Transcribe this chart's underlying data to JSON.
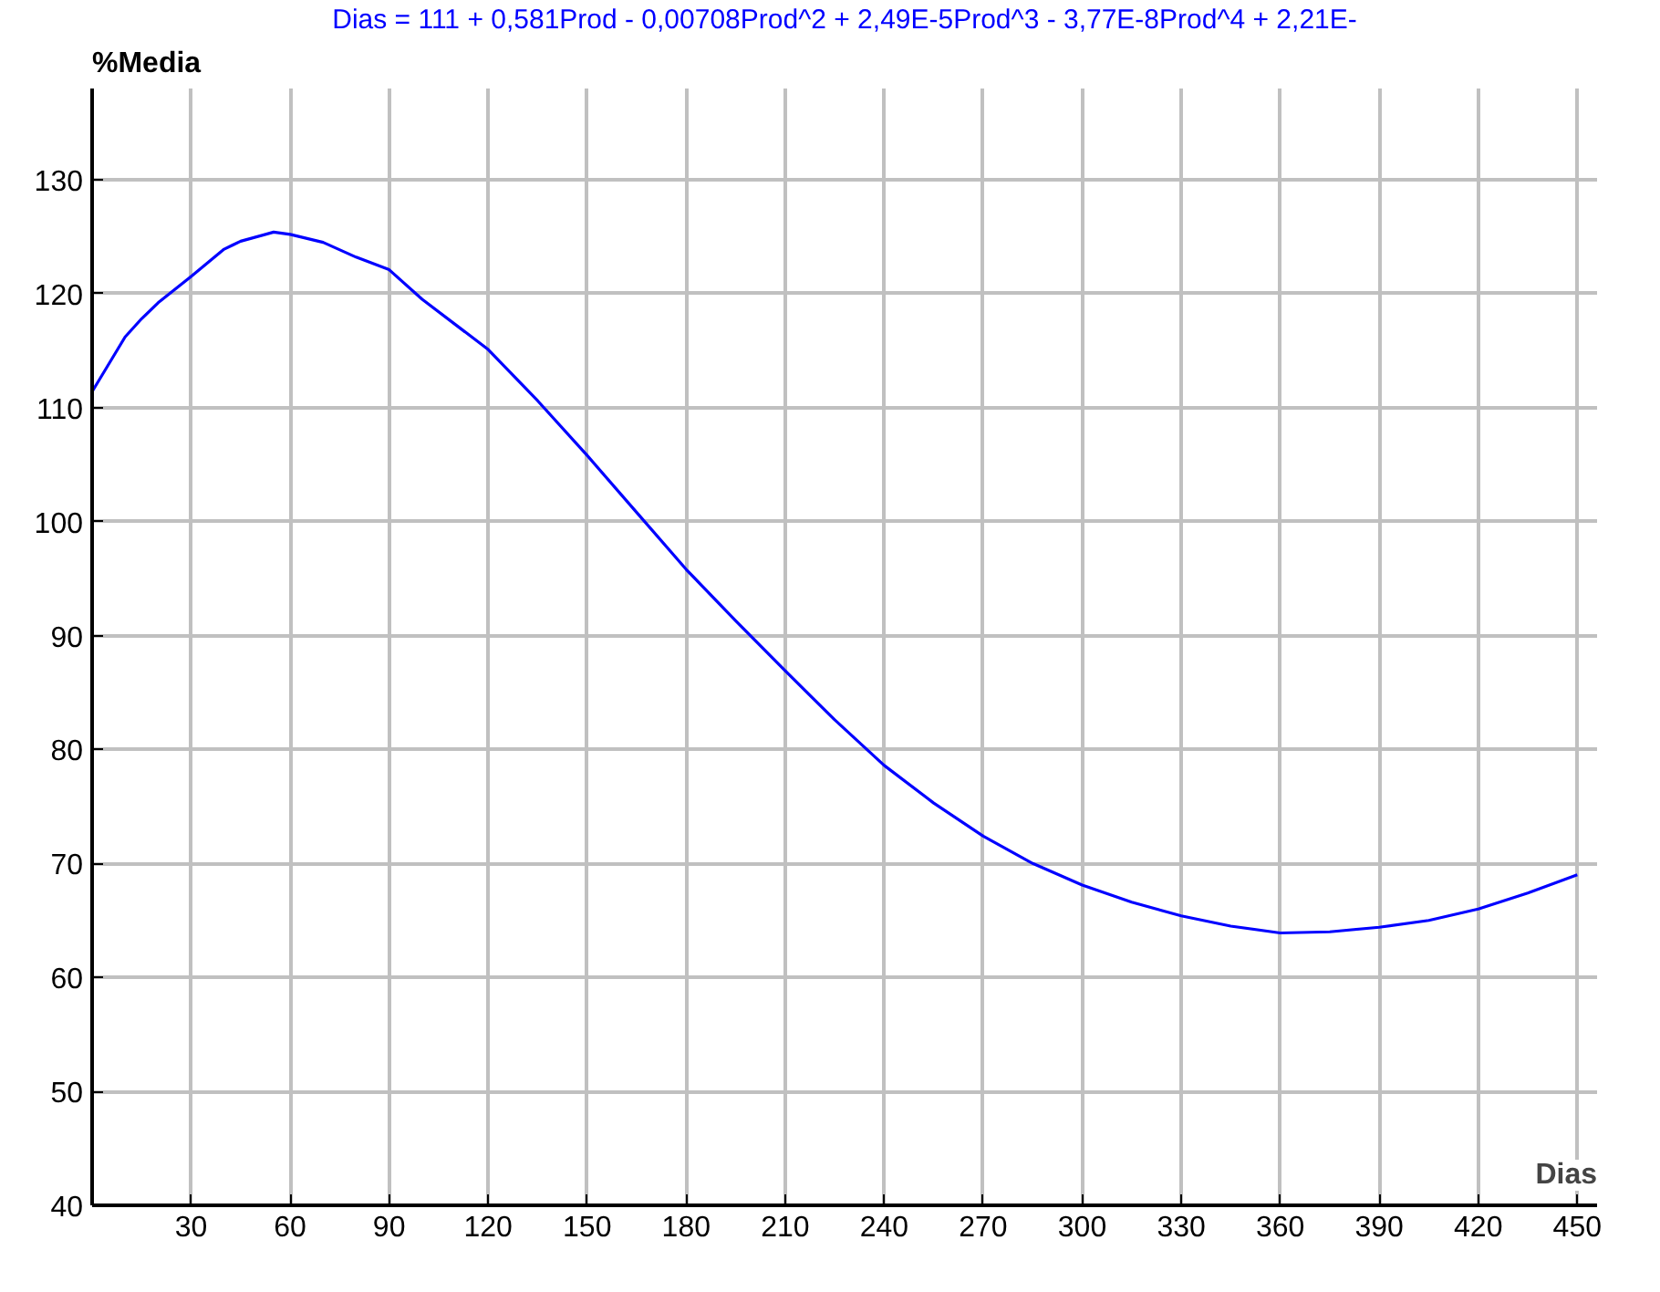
{
  "chart_data": {
    "type": "line",
    "title": "Dias = 111 + 0,581Prod - 0,00708Prod^2 + 2,49E-5Prod^3 - 3,77E-8Prod^4 + 2,21E-",
    "xlabel": "Dias",
    "ylabel": "%Media",
    "x": [
      0,
      10,
      15,
      20,
      30,
      40,
      45,
      55,
      60,
      70,
      80,
      90,
      100,
      120,
      135,
      150,
      165,
      180,
      195,
      210,
      225,
      240,
      255,
      270,
      285,
      300,
      315,
      330,
      345,
      360,
      375,
      390,
      405,
      420,
      435,
      450
    ],
    "series": [
      {
        "color": "#0000ff",
        "values": [
          111.4,
          116.2,
          117.8,
          119.2,
          121.5,
          123.9,
          124.6,
          125.4,
          125.2,
          124.5,
          123.2,
          122.1,
          119.5,
          115.1,
          110.6,
          105.8,
          100.8,
          95.8,
          91.3,
          86.9,
          82.6,
          78.6,
          75.3,
          72.4,
          70.0,
          68.1,
          66.6,
          65.4,
          64.5,
          63.9,
          64.0,
          64.4,
          65.0,
          66.0,
          67.4,
          69.0
        ]
      }
    ],
    "xlim": [
      0,
      456
    ],
    "ylim": [
      40,
      138
    ],
    "xticks": [
      30,
      60,
      90,
      120,
      150,
      180,
      210,
      240,
      270,
      300,
      330,
      360,
      390,
      420,
      450
    ],
    "yticks": [
      40,
      50,
      60,
      70,
      80,
      90,
      100,
      110,
      120,
      130
    ],
    "grid": true,
    "marker": "none",
    "line_style": "solid"
  }
}
